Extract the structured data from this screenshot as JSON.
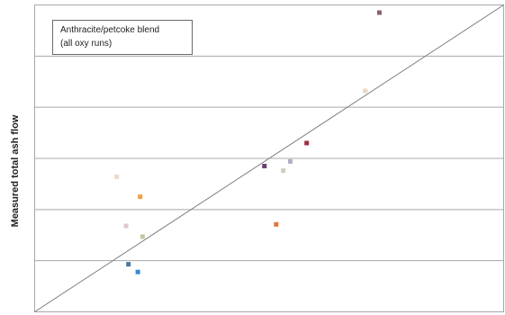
{
  "chart_data": {
    "type": "scatter",
    "title": "",
    "xlabel": "",
    "ylabel": "Measured total ash flow",
    "xlim": [
      0,
      100
    ],
    "ylim": [
      0,
      100
    ],
    "grid": "horizontal",
    "annotation": {
      "lines": [
        "Anthracite/petcoke blend",
        "(all oxy runs)"
      ]
    },
    "reference_line": {
      "from": [
        0,
        0
      ],
      "to": [
        100,
        100
      ]
    },
    "points": [
      {
        "x": 73.5,
        "y": 97.5,
        "color": "#8b6070"
      },
      {
        "x": 70.5,
        "y": 72.0,
        "color": "#e8d8c8"
      },
      {
        "x": 58.0,
        "y": 55.0,
        "color": "#9a3048"
      },
      {
        "x": 54.5,
        "y": 49.0,
        "color": "#b0b0c8"
      },
      {
        "x": 49.0,
        "y": 47.5,
        "color": "#6a4070"
      },
      {
        "x": 53.0,
        "y": 46.0,
        "color": "#c8d0c0"
      },
      {
        "x": 17.5,
        "y": 44.0,
        "color": "#f0d8c8"
      },
      {
        "x": 22.5,
        "y": 37.5,
        "color": "#f0a040"
      },
      {
        "x": 19.5,
        "y": 28.0,
        "color": "#e0c8c8"
      },
      {
        "x": 23.0,
        "y": 24.5,
        "color": "#c0c8a0"
      },
      {
        "x": 51.5,
        "y": 28.5,
        "color": "#e07838"
      },
      {
        "x": 20.0,
        "y": 15.5,
        "color": "#4878a0"
      },
      {
        "x": 22.0,
        "y": 13.0,
        "color": "#3a8ad0"
      }
    ]
  }
}
